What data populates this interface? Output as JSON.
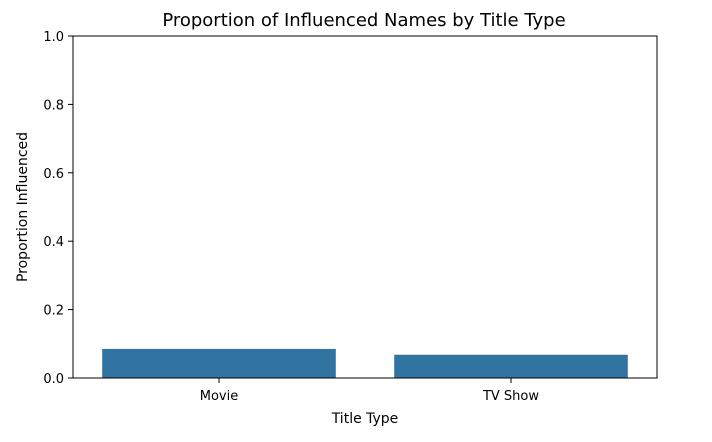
{
  "chart_data": {
    "type": "bar",
    "title": "Proportion of Influenced Names by Title Type",
    "xlabel": "Title Type",
    "ylabel": "Proportion Influenced",
    "categories": [
      "Movie",
      "TV Show"
    ],
    "values": [
      0.085,
      0.068
    ],
    "ylim": [
      0,
      1.0
    ],
    "yticks": [
      "0.0",
      "0.2",
      "0.4",
      "0.6",
      "0.8",
      "1.0"
    ],
    "grid": false,
    "bar_color": "#3274a1"
  }
}
